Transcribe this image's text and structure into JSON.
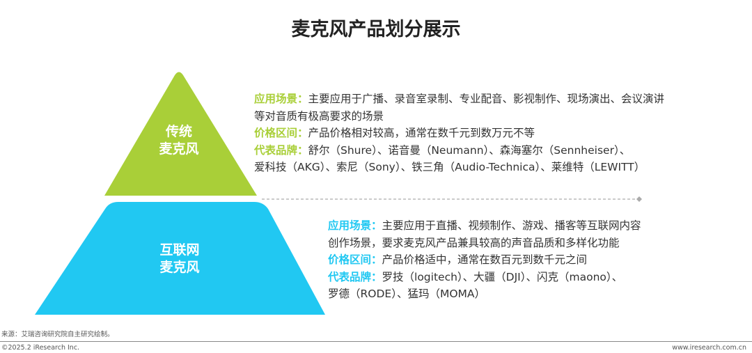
{
  "title": "麦克风产品划分展示",
  "colors": {
    "traditional": "#a9cf38",
    "internet": "#21c8f2"
  },
  "levels": [
    {
      "label_line1": "传统",
      "label_line2": "麦克风",
      "lines": [
        {
          "key": "应用场景：",
          "text": "主要应用于广播、录音室录制、专业配音、影视制作、现场演出、会议演讲"
        },
        {
          "key": "",
          "text": "等对音质有极高要求的场景"
        },
        {
          "key": "价格区间：",
          "text": "产品价格相对较高，通常在数千元到数万元不等"
        },
        {
          "key": "代表品牌：",
          "text": "舒尔（Shure）、诺音曼（Neumann）、森海塞尔（Sennheiser）、"
        },
        {
          "key": "",
          "text": "爱科技（AKG）、索尼（Sony）、铁三角（Audio-Technica）、莱维特（LEWITT）"
        }
      ]
    },
    {
      "label_line1": "互联网",
      "label_line2": "麦克风",
      "lines": [
        {
          "key": "应用场景：",
          "text": "主要应用于直播、视频制作、游戏、播客等互联网内容"
        },
        {
          "key": "",
          "text": "创作场景，要求麦克风产品兼具较高的声音品质和多样化功能"
        },
        {
          "key": "价格区间：",
          "text": "产品价格适中，通常在数百元到数千元之间"
        },
        {
          "key": "代表品牌：",
          "text": "罗技（logitech）、大疆（DJI）、闪克（maono）、"
        },
        {
          "key": "",
          "text": "罗德（RODE）、猛玛（MOMA）"
        }
      ]
    }
  ],
  "footer": {
    "source": "来源：艾瑞咨询研究院自主研究绘制。",
    "copyright": "©2025.2 iResearch Inc.",
    "url": "www.iresearch.com.cn"
  }
}
